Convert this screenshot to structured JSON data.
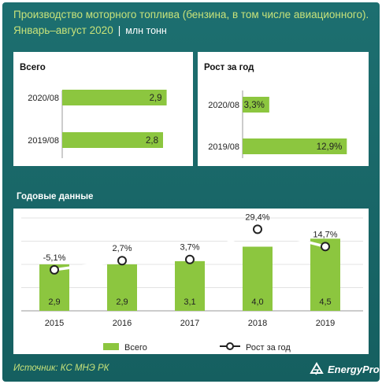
{
  "header": {
    "title": "Производство моторного топлива (бензина, в том числе авиационного).",
    "subtitle": "Январь–август 2020",
    "unit": "млн тонн"
  },
  "colors": {
    "bar": "#8cc63f",
    "panel": "#ffffff",
    "line": "#ffffff",
    "accent_text": "#c7e27a"
  },
  "chart_data": [
    {
      "type": "bar",
      "orientation": "horizontal",
      "title": "Всего",
      "categories": [
        "2020/08",
        "2019/08"
      ],
      "values": [
        2.9,
        2.8
      ],
      "labels": [
        "2,9",
        "2,8"
      ],
      "xlim": [
        0,
        3.5
      ]
    },
    {
      "type": "bar",
      "orientation": "horizontal",
      "title": "Рост за год",
      "categories": [
        "2020/08",
        "2019/08"
      ],
      "values": [
        3.3,
        12.9
      ],
      "labels": [
        "3,3%",
        "12,9%"
      ],
      "xlim": [
        0,
        15.5
      ]
    },
    {
      "type": "bar",
      "title": "Годовые данные",
      "categories": [
        "2015",
        "2016",
        "2017",
        "2018",
        "2019"
      ],
      "series": [
        {
          "name": "Всего",
          "type": "bar",
          "values": [
            2.9,
            2.9,
            3.1,
            4.0,
            4.5
          ],
          "labels": [
            "2,9",
            "2,9",
            "3,1",
            "4,0",
            "4,5"
          ]
        },
        {
          "name": "Рост за год",
          "type": "line",
          "values": [
            -5.1,
            2.7,
            3.7,
            29.4,
            14.7
          ],
          "labels": [
            "-5,1%",
            "2,7%",
            "3,7%",
            "29,4%",
            "14,7%"
          ]
        }
      ],
      "ylim_bars": [
        0,
        8
      ],
      "ylim_line": [
        -40,
        35
      ],
      "legend": "bottom"
    }
  ],
  "footer": {
    "source": "Источник: КС МНЭ РК",
    "brand": "EnergyProm",
    "logo_icon": "energyprom-logo-icon"
  }
}
